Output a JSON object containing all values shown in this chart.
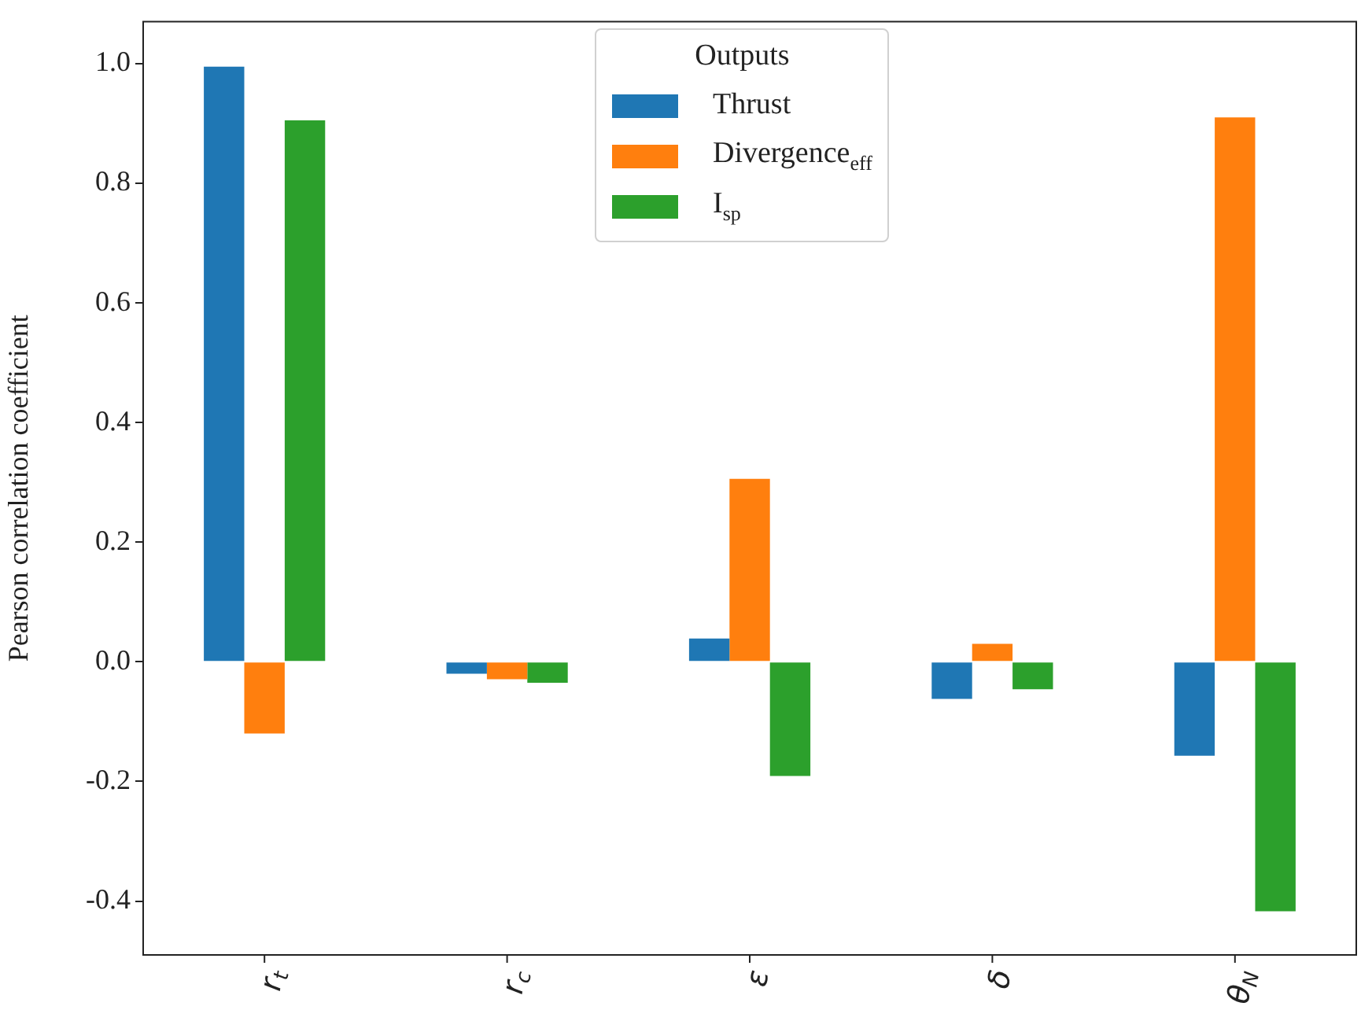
{
  "chart_data": {
    "type": "bar",
    "ylabel": "Pearson correlation coefficient",
    "legend_title": "Outputs",
    "legend": "top",
    "categories": [
      "r$_{t}$",
      "r$_{c}$",
      "ε",
      "δ",
      "θ$_{N}$"
    ],
    "series": [
      {
        "name": "Thrust",
        "color": "#1f77b4",
        "values": [
          0.995,
          -0.02,
          0.039,
          -0.062,
          -0.157
        ]
      },
      {
        "name": "Divergence$_{eff}$",
        "color": "#ff7f0e",
        "values": [
          -0.12,
          -0.029,
          0.306,
          0.03,
          0.91
        ]
      },
      {
        "name": "I$_{sp}$",
        "color": "#2ca02c",
        "values": [
          0.905,
          -0.035,
          -0.191,
          -0.046,
          -0.417
        ]
      }
    ],
    "ylim": [
      -0.49,
      1.07
    ],
    "yticks": [
      {
        "value": -0.4,
        "label": "-0.4"
      },
      {
        "value": -0.2,
        "label": "-0.2"
      },
      {
        "value": 0,
        "label": "0.0"
      },
      {
        "value": 0.2,
        "label": "0.2"
      },
      {
        "value": 0.4,
        "label": "0.4"
      },
      {
        "value": 0.6,
        "label": "0.6"
      },
      {
        "value": 0.8,
        "label": "0.8"
      },
      {
        "value": 1,
        "label": "1.0"
      }
    ],
    "grid": false
  }
}
